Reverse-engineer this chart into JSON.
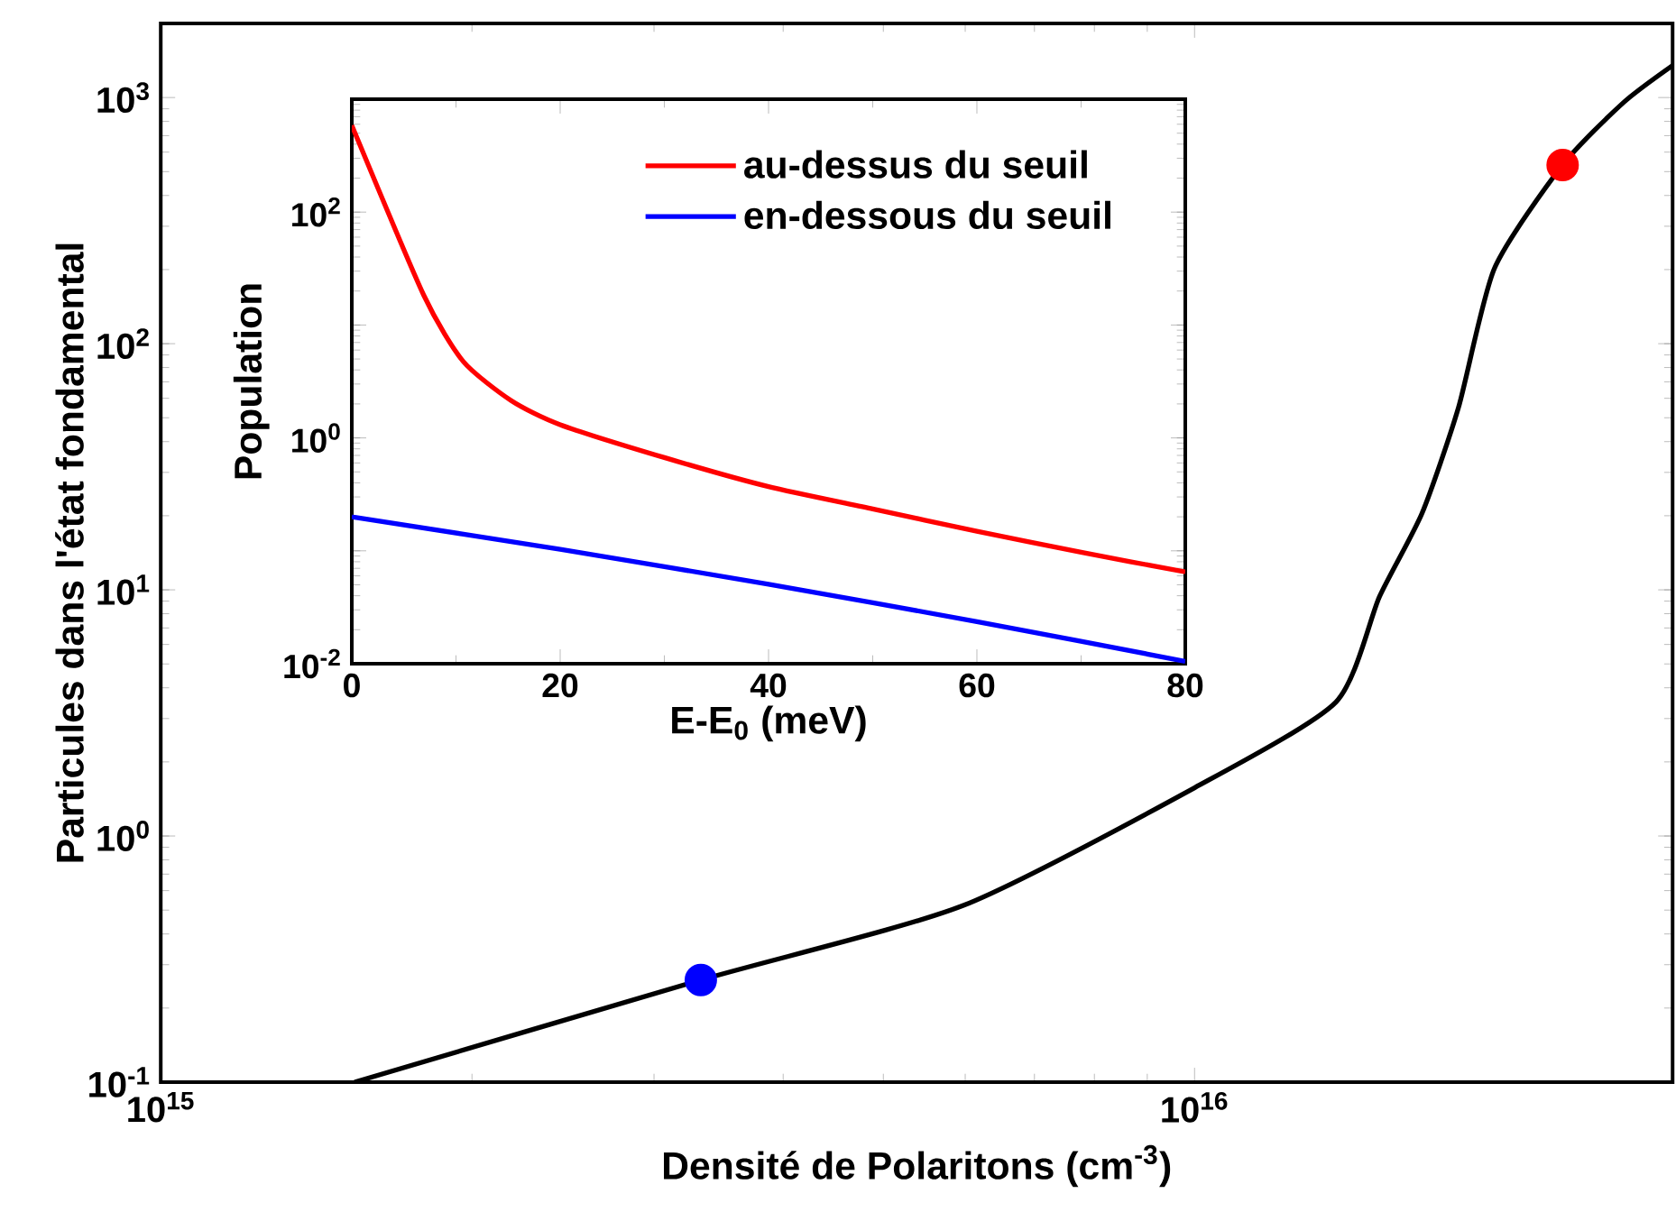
{
  "chart_data": [
    {
      "type": "line",
      "xlabel": "Densité de Polaritons (cm$^{-3}$)",
      "ylabel": "Particules dans l'état fondamental",
      "log": "xy",
      "xlim": [
        1000000000000000.0,
        2.9e+16
      ],
      "ylim": [
        0.1,
        2000
      ],
      "xticks": [
        {
          "value": 1000000000000000.0,
          "label": "10$^{15}$"
        },
        {
          "value": 1e+16,
          "label": "10$^{16}$"
        }
      ],
      "yticks": [
        {
          "value": 0.1,
          "label": "10$^{-1}$"
        },
        {
          "value": 1,
          "label": "10$^{0}$"
        },
        {
          "value": 10,
          "label": "10$^{1}$"
        },
        {
          "value": 100,
          "label": "10$^{2}$"
        },
        {
          "value": 1000,
          "label": "10$^{3}$"
        }
      ],
      "series": [
        {
          "type": "line",
          "color": "#000000",
          "x": [
            1540000000000000.0,
            3330000000000000.0,
            5960000000000000.0,
            1e+16,
            1.37e+16,
            1.51e+16,
            1.66e+16,
            1.8e+16,
            1.95e+16,
            2.27e+16,
            2.6e+16,
            2.9e+16
          ],
          "values": [
            0.1,
            0.26,
            0.52,
            1.57,
            3.5,
            9.4,
            20.5,
            55,
            202,
            532,
            955,
            1350
          ]
        },
        {
          "type": "scatter",
          "marker": "circle",
          "color": "#0000ff",
          "x": [
            3330000000000000.0
          ],
          "values": [
            0.26
          ]
        },
        {
          "type": "scatter",
          "marker": "circle",
          "color": "#ff0000",
          "x": [
            2.27e+16
          ],
          "values": [
            532
          ]
        }
      ]
    },
    {
      "type": "line",
      "xlabel": "E-E$_{0}$ (meV)",
      "ylabel": "Population",
      "log": "y",
      "xlim": [
        0,
        80
      ],
      "ylim": [
        0.01,
        1000
      ],
      "legend": "top right",
      "xticks": [
        0,
        20,
        40,
        60,
        80
      ],
      "yticks": [
        {
          "value": 0.01,
          "label": "10$^{-2}$"
        },
        {
          "value": 0.1,
          "label": null
        },
        {
          "value": 1,
          "label": "10$^{0}$"
        },
        {
          "value": 10,
          "label": null
        },
        {
          "value": 100,
          "label": "10$^{2}$"
        },
        {
          "value": 1000,
          "label": null
        }
      ],
      "series": [
        {
          "name": "au-dessus du seuil",
          "color": "#ff0000",
          "x": [
            0,
            6.9,
            10.7,
            15.3,
            20,
            30,
            40,
            50,
            60,
            70,
            80
          ],
          "values": [
            586,
            18.4,
            4.75,
            2.14,
            1.31,
            0.67,
            0.37,
            0.235,
            0.149,
            0.097,
            0.065
          ]
        },
        {
          "name": "en-dessous du seuil",
          "color": "#0000ff",
          "x": [
            0,
            20,
            40,
            60,
            80
          ],
          "values": [
            0.2,
            0.103,
            0.0506,
            0.0236,
            0.0105
          ]
        }
      ]
    }
  ]
}
